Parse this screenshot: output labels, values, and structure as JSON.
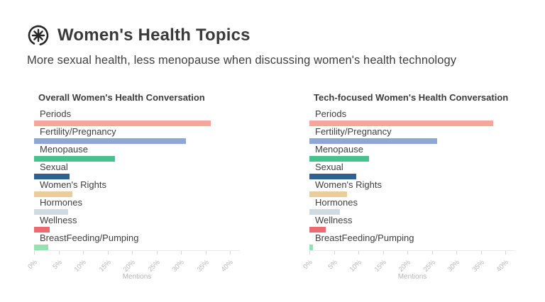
{
  "header": {
    "title": "Women's Health Topics",
    "subtitle": "More sexual health, less menopause when discussing women's health technology",
    "logo_icon": "asterisk-circle-logo",
    "logo_color": "#262626"
  },
  "chart_data": [
    {
      "type": "bar",
      "orientation": "horizontal",
      "title": "Overall Women's Health Conversation",
      "categories": [
        "Periods",
        "Fertility/Pregnancy",
        "Menopause",
        "Sexual",
        "Women's Rights",
        "Hormones",
        "Wellness",
        "BreastFeeding/Pumping"
      ],
      "values": [
        36,
        31,
        16.5,
        7.2,
        7.8,
        7,
        3.2,
        2.9
      ],
      "colors": [
        "#F6A79B",
        "#8CA7D8",
        "#46C28E",
        "#326090",
        "#EACC9F",
        "#CFDBE1",
        "#ED6A71",
        "#99E0B0"
      ],
      "xlabel": "Mentions",
      "x_ticks": [
        "0%",
        "5%",
        "10%",
        "15%",
        "20%",
        "25%",
        "30%",
        "35%",
        "40%"
      ],
      "xlim": [
        0,
        42
      ],
      "grid": false,
      "legend": "none",
      "units": "percent of mentions"
    },
    {
      "type": "bar",
      "orientation": "horizontal",
      "title": "Tech-focused Women's Health Conversation",
      "categories": [
        "Periods",
        "Fertility/Pregnancy",
        "Menopause",
        "Sexual",
        "Women's Rights",
        "Hormones",
        "Wellness",
        "BreastFeeding/Pumping"
      ],
      "values": [
        37.5,
        26,
        12.2,
        9.6,
        7.7,
        6.2,
        3.4,
        0.7
      ],
      "colors": [
        "#F6A79B",
        "#8CA7D8",
        "#46C28E",
        "#326090",
        "#EACC9F",
        "#CFDBE1",
        "#ED6A71",
        "#99E0B0"
      ],
      "xlabel": "Mentions",
      "x_ticks": [
        "0%",
        "5%",
        "10%",
        "15%",
        "20%",
        "25%",
        "30%",
        "35%",
        "40%"
      ],
      "xlim": [
        0,
        42
      ],
      "grid": false,
      "legend": "none",
      "units": "percent of mentions"
    }
  ]
}
